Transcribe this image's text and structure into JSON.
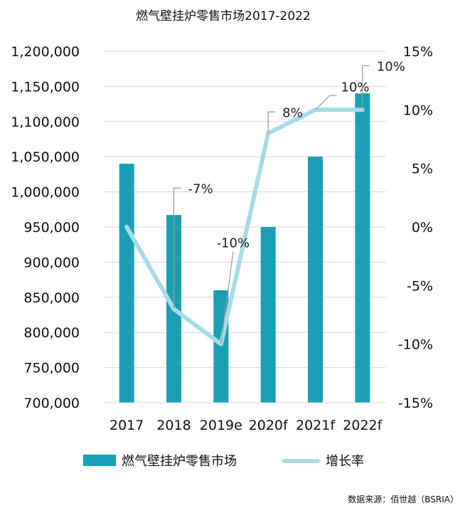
{
  "chart_data": {
    "type": "bar+line",
    "title": "燃气壁挂炉零售市场2017-2022",
    "categories": [
      "2017",
      "2018",
      "2019e",
      "2020f",
      "2021f",
      "2022f"
    ],
    "series": [
      {
        "name": "燃气壁挂炉零售市场",
        "type": "bar",
        "axis": "left",
        "color": "#1aa0b5",
        "values": [
          1040000,
          967000,
          860000,
          950000,
          1050000,
          1140000
        ]
      },
      {
        "name": "增长率",
        "type": "line",
        "axis": "right",
        "color": "#a8dbe6",
        "values": [
          0,
          -7,
          -10,
          8,
          10,
          10
        ]
      }
    ],
    "data_labels": [
      "-7%",
      "-10%",
      "8%",
      "10%",
      "10%"
    ],
    "y_left": {
      "min": 700000,
      "max": 1200000,
      "step": 50000,
      "ticks": [
        "700,000",
        "750,000",
        "800,000",
        "850,000",
        "900,000",
        "950,000",
        "1,000,000",
        "1,050,000",
        "1,100,000",
        "1,150,000",
        "1,200,000"
      ]
    },
    "y_right": {
      "min": -15,
      "max": 15,
      "step": 5,
      "ticks": [
        "-15%",
        "-10%",
        "-5%",
        "0%",
        "5%",
        "10%",
        "15%"
      ]
    },
    "grid": true,
    "legend_position": "bottom",
    "source": "数据来源：佰世越（BSRIA）"
  }
}
